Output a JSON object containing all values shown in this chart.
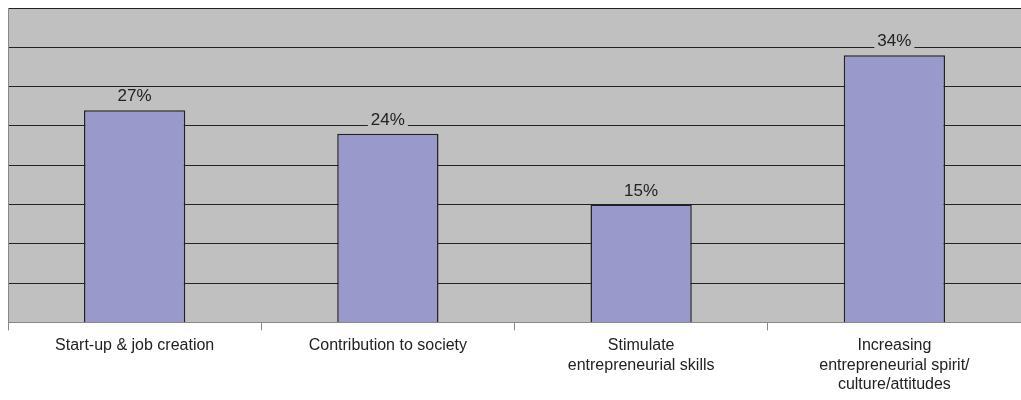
{
  "chart_data": {
    "type": "bar",
    "categories": [
      "Start-up & job creation",
      "Contribution to society",
      "Stimulate entrepreneurial skills",
      "Increasing entrepreneurial spirit/ culture/attitudes"
    ],
    "values": [
      27,
      24,
      15,
      34
    ],
    "color": "#9999cc",
    "ylim": [
      0,
      40
    ],
    "value_labels": [
      "27%",
      "24%",
      "15%",
      "34%"
    ],
    "grid": "y",
    "tick_labels": "x",
    "legend": false
  }
}
